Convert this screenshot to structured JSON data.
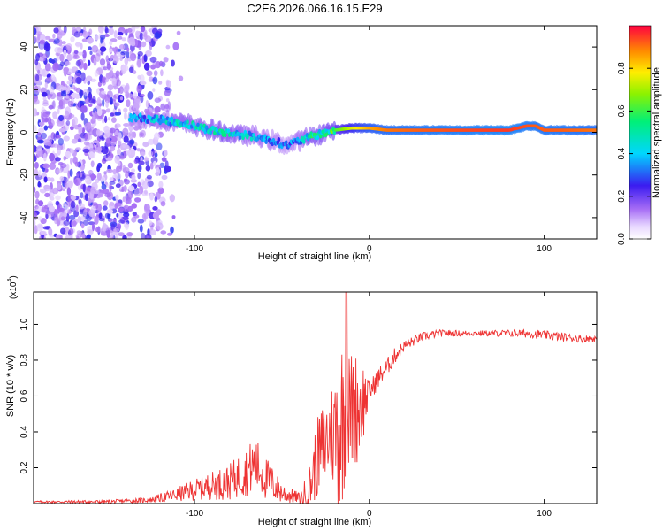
{
  "title": "C2E6.2026.066.16.15.E29",
  "chart_data": [
    {
      "type": "heatmap",
      "xlabel": "Height of straight line (km)",
      "ylabel": "Frequency (Hz)",
      "xlim": [
        -192,
        130
      ],
      "ylim": [
        -50,
        50
      ],
      "x_ticks": [
        -100,
        0,
        100
      ],
      "x_tick_labels": [
        "-100",
        "0",
        "100"
      ],
      "y_ticks": [
        -40,
        -20,
        0,
        20,
        40
      ],
      "y_tick_labels": [
        "-40",
        "-20",
        "0",
        "20",
        "40"
      ],
      "colorbar": {
        "label": "Normalized spectral amplitude",
        "range": [
          0,
          1
        ],
        "ticks": [
          0,
          0.2,
          0.4,
          0.6,
          0.8
        ],
        "tick_labels": [
          "0.0",
          "0.2",
          "0.4",
          "0.6",
          "0.8"
        ]
      },
      "noise_region_x": [
        -192,
        -118
      ],
      "ridge": {
        "x": [
          -135,
          -120,
          -105,
          -95,
          -85,
          -75,
          -65,
          -55,
          -47,
          -40,
          -33,
          -25,
          -20,
          -10,
          0,
          10,
          30,
          60,
          80,
          90,
          95,
          100,
          110,
          130
        ],
        "frequency": [
          7,
          6,
          4,
          2,
          0,
          -1,
          -2,
          -4,
          -6,
          -4,
          -2,
          0,
          1,
          2,
          2,
          1,
          1,
          1,
          1,
          3,
          3,
          1,
          1,
          1
        ],
        "amplitude": [
          0.35,
          0.4,
          0.45,
          0.45,
          0.5,
          0.45,
          0.4,
          0.35,
          0.3,
          0.4,
          0.5,
          0.5,
          0.6,
          0.75,
          0.85,
          0.9,
          0.92,
          0.94,
          0.95,
          0.93,
          0.92,
          0.92,
          0.92,
          0.9
        ]
      }
    },
    {
      "type": "line",
      "xlabel": "Height of straight line (km)",
      "ylabel": "SNR (10 * v/v)",
      "y_scale_label": "(x10",
      "y_scale_exponent": "4",
      "xlim": [
        -192,
        130
      ],
      "ylim": [
        0,
        1.18
      ],
      "x_ticks": [
        -100,
        0,
        100
      ],
      "x_tick_labels": [
        "-100",
        "0",
        "100"
      ],
      "y_ticks": [
        0.2,
        0.4,
        0.6,
        0.8,
        1.0
      ],
      "y_tick_labels": [
        "0.2",
        "0.4",
        "0.6",
        "0.8",
        "1.0"
      ],
      "series": [
        {
          "name": "SNR",
          "color": "#ee3333",
          "x": [
            -192,
            -150,
            -125,
            -110,
            -95,
            -80,
            -70,
            -65,
            -60,
            -50,
            -40,
            -35,
            -30,
            -25,
            -20,
            -17,
            -13,
            -5,
            0,
            5,
            10,
            15,
            20,
            30,
            40,
            60,
            80,
            90,
            100,
            110,
            120,
            130
          ],
          "y": [
            0.01,
            0.01,
            0.02,
            0.05,
            0.09,
            0.12,
            0.18,
            0.22,
            0.15,
            0.06,
            0.03,
            0.06,
            0.25,
            0.35,
            0.4,
            0.45,
            0.5,
            0.55,
            0.62,
            0.7,
            0.76,
            0.83,
            0.88,
            0.93,
            0.95,
            0.95,
            0.95,
            0.95,
            0.94,
            0.93,
            0.92,
            0.92
          ],
          "spread": [
            0.005,
            0.01,
            0.015,
            0.04,
            0.07,
            0.1,
            0.14,
            0.16,
            0.13,
            0.06,
            0.03,
            0.12,
            0.22,
            0.26,
            0.32,
            0.55,
            0.36,
            0.3,
            0.06,
            0.06,
            0.05,
            0.045,
            0.03,
            0.025,
            0.02,
            0.015,
            0.02,
            0.025,
            0.025,
            0.025,
            0.02,
            0.02
          ]
        }
      ]
    }
  ],
  "colors": {
    "line": "#ee3333",
    "noise_purple": "#6a1fd0",
    "ridge_core": "#ff2a1a"
  }
}
